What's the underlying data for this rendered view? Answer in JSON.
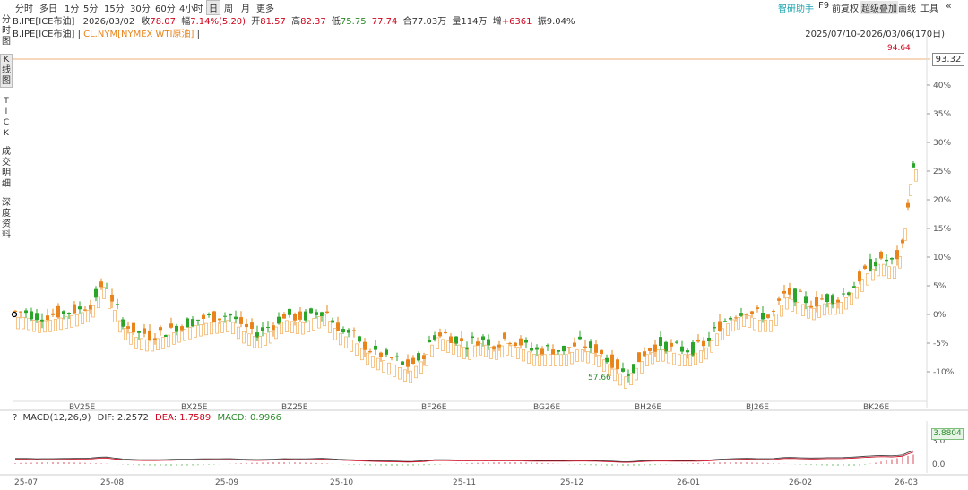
{
  "toolbar": {
    "periods": [
      "分时",
      "多日",
      "1分",
      "5分",
      "15分",
      "30分",
      "60分",
      "4小时",
      "日",
      "周",
      "月",
      "更多"
    ],
    "active_period": "日",
    "right_tools": [
      "智研助手",
      "F9",
      "前复权",
      "超级叠加",
      "画线",
      "工具"
    ],
    "collapse_icon": "double-chevron-left-icon"
  },
  "side_tabs": [
    {
      "label": "分时图"
    },
    {
      "label": "K线图"
    },
    {
      "label": "TICK"
    },
    {
      "label": "成交明细"
    },
    {
      "label": "深度资料"
    }
  ],
  "quote": {
    "symbol": "B.IPE[ICE布油]",
    "date": "2026/03/02",
    "close_label": "收",
    "close": "78.07",
    "change_label": "幅",
    "change": "7.14%(5.20)",
    "open_label": "开",
    "open": "81.57",
    "high_label": "高",
    "high": "82.37",
    "low_label": "低",
    "low": "75.75",
    "last_label": "",
    "last": "77.74",
    "oi_label": "合",
    "oi": "77.03万",
    "vol_label": "量",
    "vol": "114万",
    "inc_label": "增",
    "inc": "+6361",
    "amp_label": "振",
    "amp": "9.04%"
  },
  "legend": {
    "main": "B.IPE[ICE布油]",
    "sep": " | ",
    "overlay": "CL.NYM[NYMEX WTI原油]",
    "tail": " |"
  },
  "date_range": "2025/07/10-2026/03/06(170日)",
  "price_box": "93.32",
  "marks": {
    "high": "94.64",
    "low": "57.66"
  },
  "colors": {
    "up": "#e8841b",
    "down": "#2aa52a",
    "overlay": "#f0a040",
    "ref_line": "#f2b27a"
  },
  "chart_data": {
    "type": "candlestick",
    "y_axis_ticks": [
      "40%",
      "35%",
      "30%",
      "25%",
      "20%",
      "15%",
      "10%",
      "5%",
      "0%",
      "-5%",
      "-10%"
    ],
    "contract_labels": [
      "BV25E",
      "BX25E",
      "BZ25E",
      "BF26E",
      "BG26E",
      "BH26E",
      "BJ26E",
      "BK26E"
    ],
    "x_date_labels": [
      "25-07",
      "25-08",
      "25-09",
      "25-10",
      "25-11",
      "25-12",
      "26-01",
      "26-02",
      "26-03"
    ],
    "high": 94.64,
    "low": 57.66,
    "last": 93.32
  },
  "macd": {
    "title": "MACD(12,26,9)",
    "dif_label": "DIF:",
    "dif": "2.2572",
    "dea_label": "DEA:",
    "dea": "1.7589",
    "macd_label": "MACD:",
    "macd": "0.9966",
    "box": "3.8804",
    "ticks": [
      "3.0",
      "0.0"
    ]
  }
}
